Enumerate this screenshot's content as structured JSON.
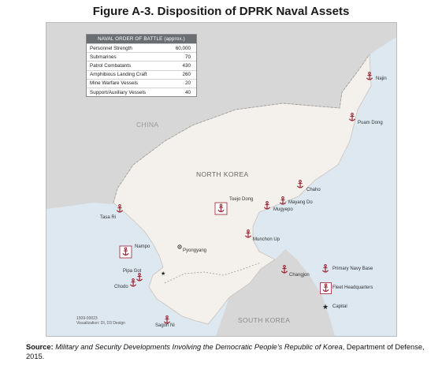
{
  "title": "Figure A-3. Disposition of DPRK Naval Assets",
  "order_of_battle": {
    "header": "NAVAL ORDER OF BATTLE (approx.)",
    "rows": [
      {
        "label": "Personnel Strength",
        "value": "60,000"
      },
      {
        "label": "Submarines",
        "value": "70"
      },
      {
        "label": "Patrol Combatants",
        "value": "430"
      },
      {
        "label": "Amphibious Landing Craft",
        "value": "260"
      },
      {
        "label": "Mine Warfare Vessels",
        "value": "20"
      },
      {
        "label": "Support/Auxiliary Vessels",
        "value": "40"
      }
    ]
  },
  "countries": {
    "china": "CHINA",
    "north_korea": "NORTH KOREA",
    "south_korea": "SOUTH KOREA"
  },
  "places": {
    "najin": "Najin",
    "puam_dong": "Puam Dong",
    "chaho": "Chaho",
    "mayang_do": "Mayang Do",
    "mugyepo": "Mugyepo",
    "toejo_dong": "Toejo Dong",
    "tasa_ri": "Tasa Ri",
    "nampo": "Nampo",
    "pyongyang": "Pyongyang",
    "munchon_up": "Munchon Up",
    "changjon": "Changjon",
    "pipa_got": "Pipa Got",
    "chodo": "Chodo",
    "sagon_ni": "Sagon Ni"
  },
  "legend": {
    "primary_base": "Primary Navy Base",
    "fleet_hq": "Fleet Headquarters",
    "capital": "Capital"
  },
  "credit": {
    "code": "1509-00023",
    "visualization": "Visualization: DI, D3 Design"
  },
  "source": {
    "label": "Source:",
    "title": "Military and Security Developments Involving the Democratic People's Republic of Korea",
    "rest": ", Department of Defense, 2015."
  },
  "colors": {
    "land_north_korea": "#f4f1ec",
    "land_other": "#d7d7d7",
    "water": "#dde8f1",
    "anchor": "#9b2230"
  }
}
